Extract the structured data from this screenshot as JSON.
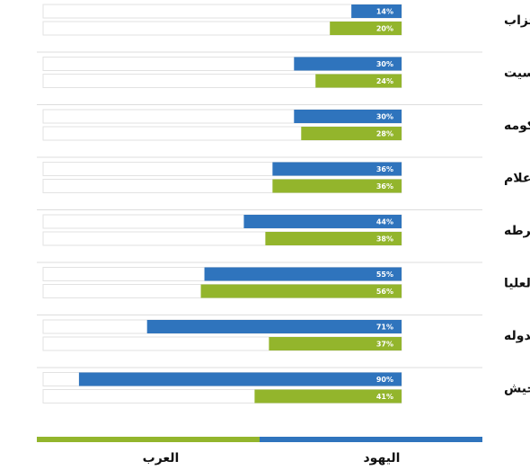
{
  "chart_data": {
    "type": "bar",
    "orientation": "horizontal",
    "direction": "right-to-left",
    "categories": [
      "الاحزاب",
      "الكنيسيت",
      "الحكومه",
      "الاعلام",
      "الشرطه",
      "المحكمه العليا",
      "رئيس الدوله",
      "الجيش"
    ],
    "series": [
      {
        "name": "اليهود",
        "color": "#2f74bd",
        "values": [
          14,
          30,
          30,
          36,
          44,
          55,
          71,
          90
        ]
      },
      {
        "name": "العرب",
        "color": "#93b52c",
        "values": [
          20,
          24,
          28,
          36,
          38,
          56,
          37,
          41
        ]
      }
    ],
    "value_suffix": "%",
    "xlim": [
      0,
      100
    ],
    "track_color": "#ffffff",
    "track_border_color": "#e2e2e2",
    "divider_color": "#dddddd",
    "legend_placement": "bottom",
    "grid": false
  }
}
